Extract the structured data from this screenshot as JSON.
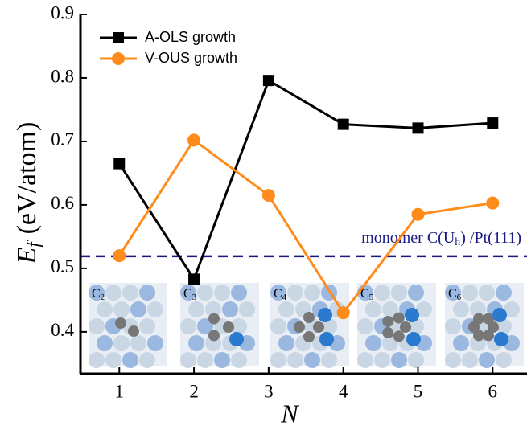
{
  "chart_data": {
    "type": "line",
    "x_label": "N",
    "y_label": {
      "main": "E",
      "sub": "f",
      "unit": "(eV/atom)"
    },
    "x": [
      1,
      2,
      3,
      4,
      5,
      6
    ],
    "series": [
      {
        "name": "A-OLS growth",
        "color": "#000000",
        "marker": "square",
        "values": [
          0.665,
          0.483,
          0.796,
          0.727,
          0.721,
          0.729
        ]
      },
      {
        "name": "V-OUS growth",
        "color": "#ff8c1a",
        "marker": "circle",
        "values": [
          0.52,
          0.702,
          0.615,
          0.43,
          0.585,
          0.603
        ]
      }
    ],
    "reference_line": {
      "value": 0.519,
      "color": "#1a1a80",
      "label": {
        "pre": "monomer C(U",
        "sub": "h",
        "post": ") /Pt(111)"
      }
    },
    "insets": [
      {
        "base": "C",
        "sub": "2"
      },
      {
        "base": "C",
        "sub": "3"
      },
      {
        "base": "C",
        "sub": "4"
      },
      {
        "base": "C",
        "sub": "5"
      },
      {
        "base": "C",
        "sub": "6"
      }
    ],
    "xlim": [
      0.48,
      6.46
    ],
    "ylim": [
      0.334,
      0.9
    ],
    "xticks": [
      1,
      2,
      3,
      4,
      5,
      6
    ],
    "yticks": [
      0.4,
      0.5,
      0.6,
      0.7,
      0.8,
      0.9
    ],
    "legend": "upper left"
  }
}
